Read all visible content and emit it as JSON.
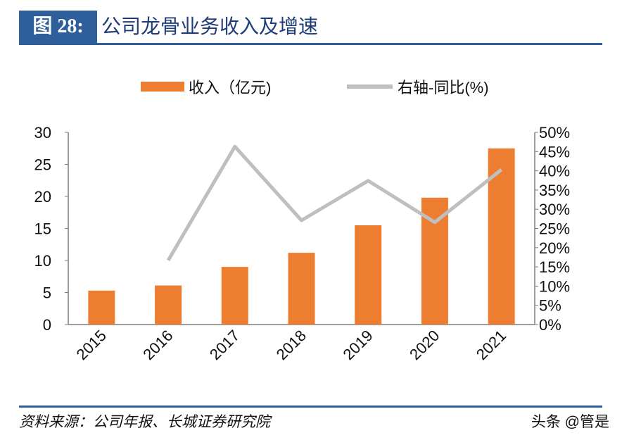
{
  "header": {
    "figure_label": "图 28:",
    "title": "公司龙骨业务收入及增速"
  },
  "footer": {
    "source": "资料来源：公司年报、长城证券研究院",
    "watermark": "头条 @管是"
  },
  "colors": {
    "bar": "#ed7d31",
    "line": "#bfbfbf",
    "accent": "#2e5f9b"
  },
  "chart_data": {
    "type": "bar+line",
    "categories": [
      "2015",
      "2016",
      "2017",
      "2018",
      "2019",
      "2020",
      "2021"
    ],
    "series": [
      {
        "name": "收入（亿元)",
        "type": "bar",
        "axis": "left",
        "values": [
          5.3,
          6.1,
          9.0,
          11.2,
          15.5,
          19.8,
          27.5
        ]
      },
      {
        "name": "右轴-同比(%)",
        "type": "line",
        "axis": "right",
        "values": [
          null,
          16.7,
          46.3,
          27.1,
          37.4,
          26.6,
          40.3
        ]
      }
    ],
    "left_axis": {
      "ylim": [
        0,
        30
      ],
      "ticks": [
        "0",
        "5",
        "10",
        "15",
        "20",
        "25",
        "30"
      ]
    },
    "right_axis": {
      "ylim": [
        0,
        50
      ],
      "ticks": [
        "0%",
        "5%",
        "10%",
        "15%",
        "20%",
        "25%",
        "30%",
        "35%",
        "40%",
        "45%",
        "50%"
      ]
    },
    "legend": {
      "position": "top",
      "bar_label": "收入（亿元)",
      "line_label": "右轴-同比(%)"
    },
    "grid": false
  }
}
